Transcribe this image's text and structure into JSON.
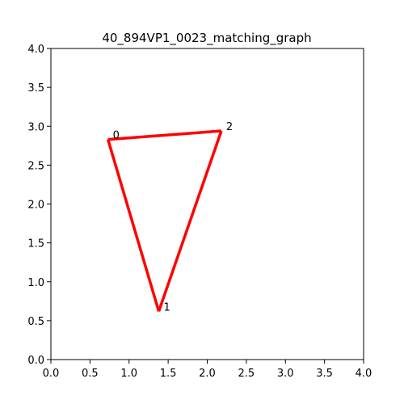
{
  "chart_data": {
    "type": "line",
    "title": "40_894VP1_0023_matching_graph",
    "xlabel": "",
    "ylabel": "",
    "xlim": [
      0,
      4
    ],
    "ylim": [
      0,
      4
    ],
    "x_ticks": [
      "0.0",
      "0.5",
      "1.0",
      "1.5",
      "2.0",
      "2.5",
      "3.0",
      "3.5",
      "4.0"
    ],
    "y_ticks": [
      "0.0",
      "0.5",
      "1.0",
      "1.5",
      "2.0",
      "2.5",
      "3.0",
      "3.5",
      "4.0"
    ],
    "grid": false,
    "edge_color": "#ff0000",
    "nodes": [
      {
        "label": "0",
        "x": 0.73,
        "y": 2.83
      },
      {
        "label": "1",
        "x": 1.38,
        "y": 0.62
      },
      {
        "label": "2",
        "x": 2.18,
        "y": 2.94
      }
    ],
    "edges": [
      {
        "from": 0,
        "to": 1
      },
      {
        "from": 1,
        "to": 2
      },
      {
        "from": 2,
        "to": 0
      }
    ]
  }
}
